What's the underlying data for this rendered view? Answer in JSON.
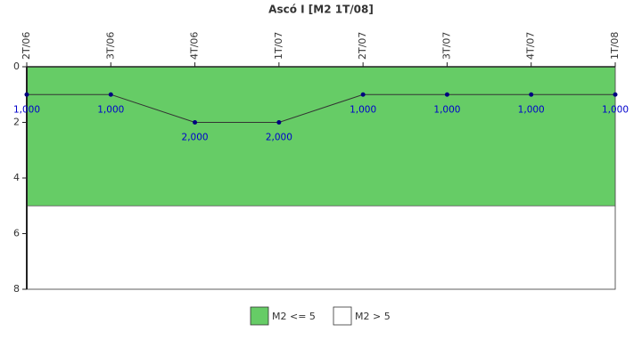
{
  "chart_data": {
    "type": "line",
    "title": "Ascó I [M2 1T/08]",
    "categories": [
      "2T/06",
      "3T/06",
      "4T/06",
      "1T/07",
      "2T/07",
      "3T/07",
      "4T/07",
      "1T/08"
    ],
    "values": [
      1,
      1,
      2,
      2,
      1,
      1,
      1,
      1
    ],
    "value_labels": [
      "1,000",
      "1,000",
      "2,000",
      "2,000",
      "1,000",
      "1,000",
      "1,000",
      "1,000"
    ],
    "color": "#000080",
    "ylim": [
      0,
      8
    ],
    "yticks": [
      0,
      2,
      4,
      6,
      8
    ],
    "y_inverted": true,
    "bands": [
      {
        "name": "M2 <= 5",
        "color": "#66cc66",
        "from": 0,
        "to": 5
      },
      {
        "name": "M2 > 5",
        "color": "#ffffff",
        "from": 5,
        "to": 8
      }
    ]
  }
}
